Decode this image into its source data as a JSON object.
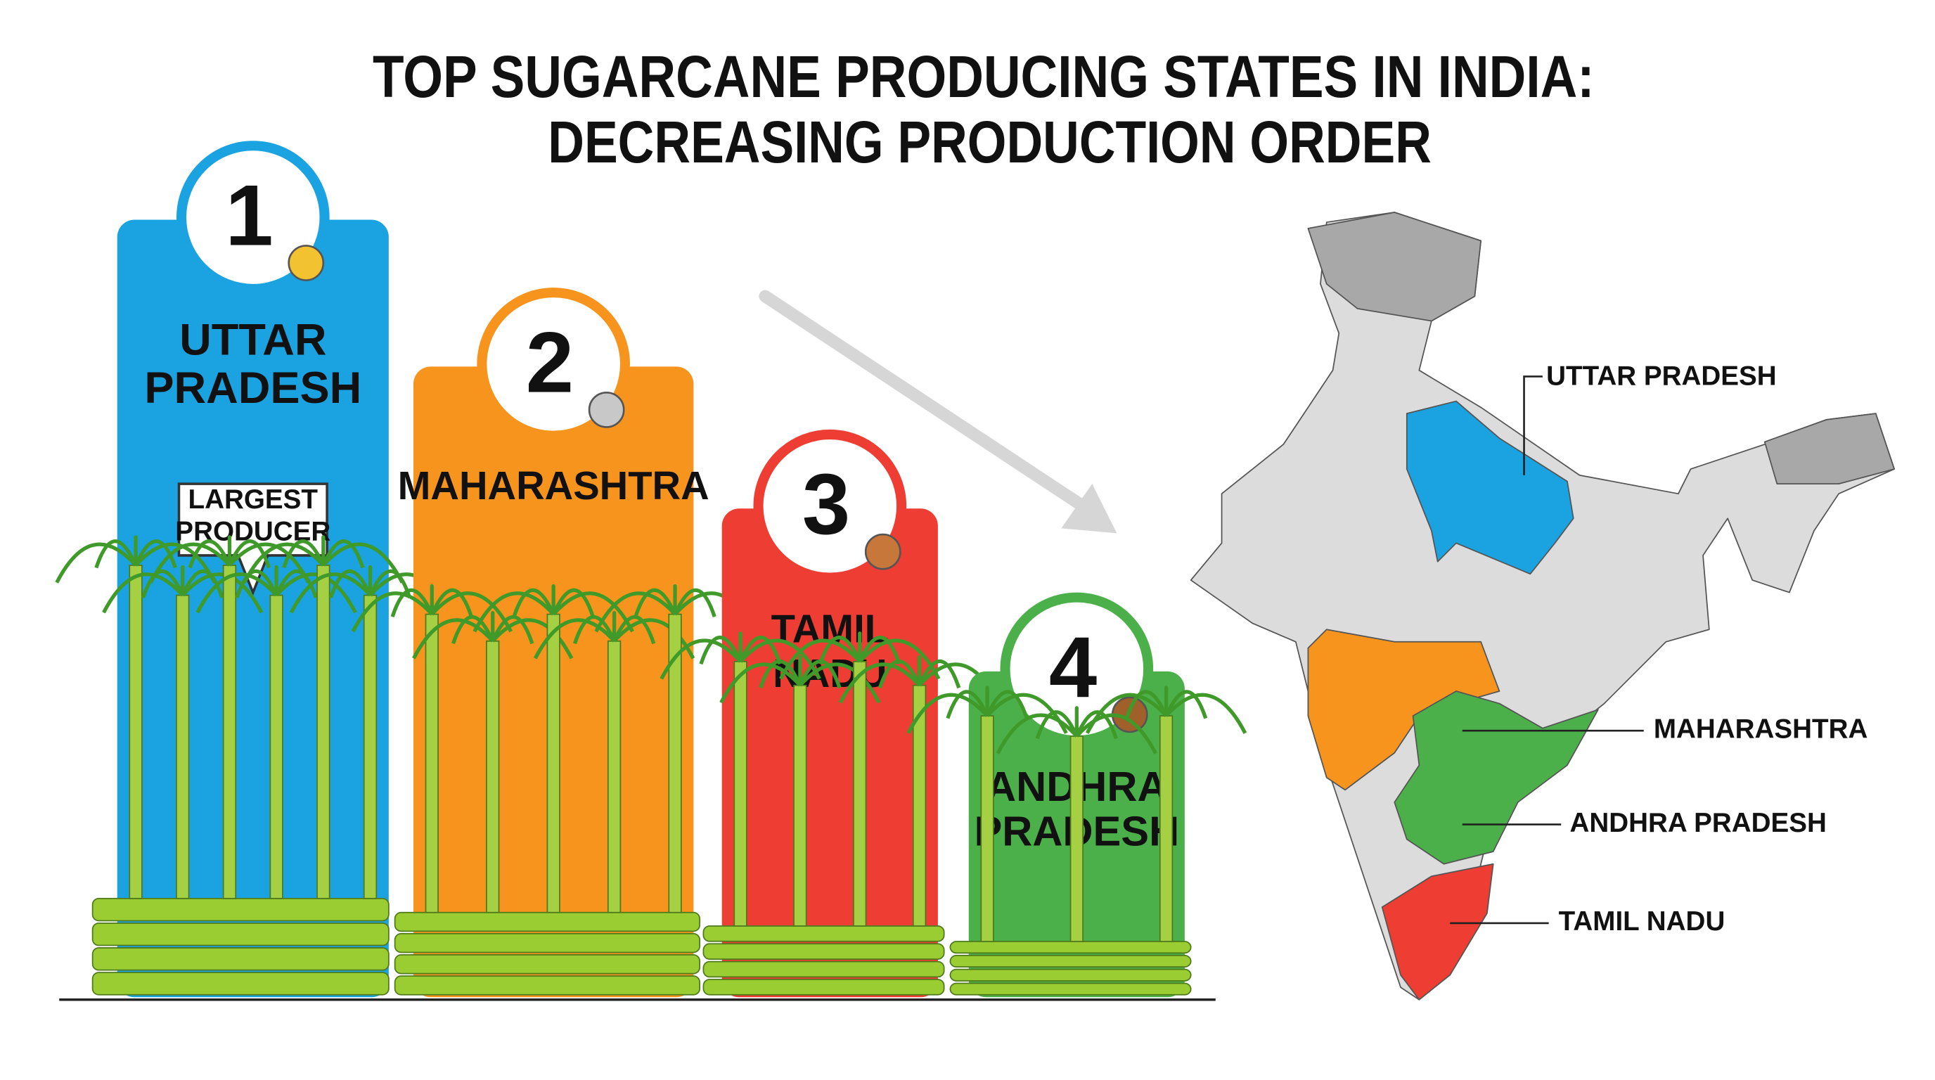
{
  "title": {
    "lines": [
      "TOP SUGARCANE PRODUCING STATES IN INDIA:",
      "DECREASING PRODUCTION ORDER"
    ]
  },
  "ranking": [
    {
      "rank": 1,
      "state": [
        "UTTAR",
        "PRADESH"
      ],
      "badge": [
        "LARGEST",
        "PRODUCER"
      ]
    },
    {
      "rank": 2,
      "state": [
        "MAHARASHTRA"
      ]
    },
    {
      "rank": 3,
      "state": [
        "TAMIL",
        "NADU"
      ]
    },
    {
      "rank": 4,
      "state": [
        "ANDHRA",
        "PRADESH"
      ]
    }
  ],
  "map": {
    "labels": [
      "UTTAR PRADESH",
      "MAHARASHTRA",
      "ANDHRA PRADESH",
      "TAMIL NADU"
    ]
  }
}
